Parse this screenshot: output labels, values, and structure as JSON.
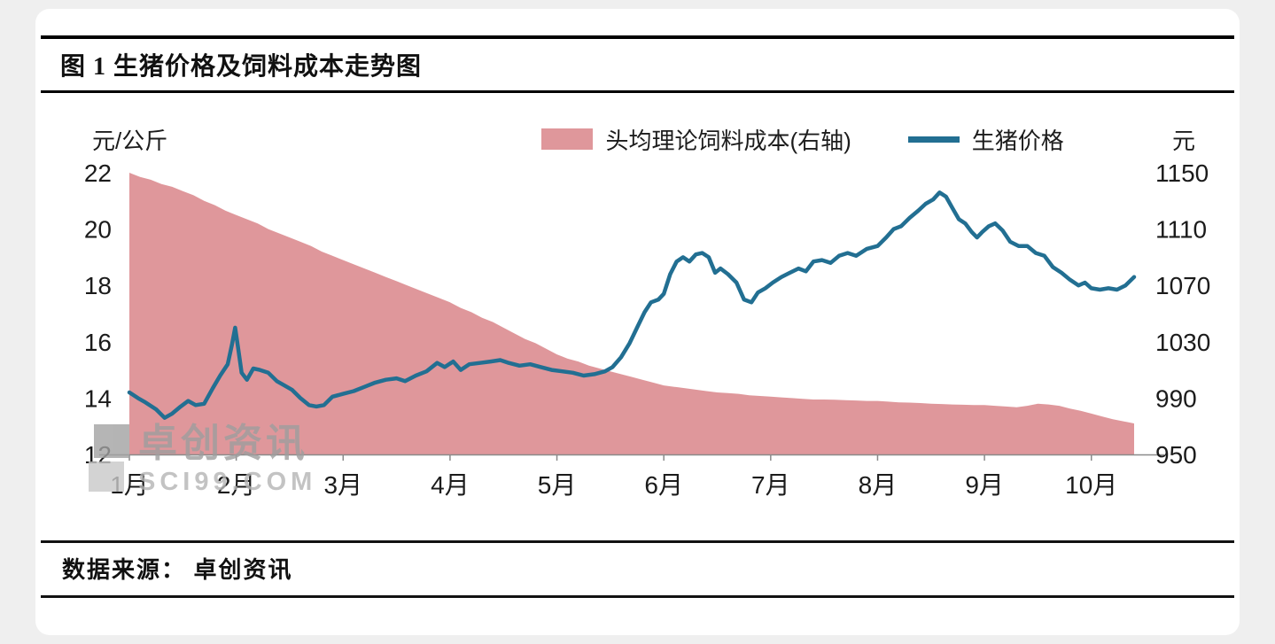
{
  "figure": {
    "title": "图 1 生猪价格及饲料成本走势图",
    "source": "数据来源： 卓创资讯"
  },
  "watermark": {
    "line1": "卓创资讯",
    "line2": "SCI99.COM"
  },
  "chart_data": {
    "type": "line",
    "title": "图 1 生猪价格及饲料成本走势图",
    "grid": false,
    "legend_position": "top",
    "x_range": [
      1.0,
      10.4
    ],
    "x_ticks": [
      "1月",
      "2月",
      "3月",
      "4月",
      "5月",
      "6月",
      "7月",
      "8月",
      "9月",
      "10月"
    ],
    "left_axis": {
      "label": "元/公斤",
      "min": 12,
      "max": 22,
      "ticks": [
        22,
        20,
        18,
        16,
        14,
        12
      ]
    },
    "right_axis": {
      "label": "元",
      "min": 950,
      "max": 1150,
      "ticks": [
        1150,
        1110,
        1070,
        1030,
        990,
        950
      ]
    },
    "legend": [
      {
        "label": "头均理论饲料成本(右轴)",
        "color": "#df979b",
        "type": "area"
      },
      {
        "label": "生猪价格",
        "color": "#226f92",
        "type": "line"
      }
    ],
    "series": [
      {
        "name": "头均理论饲料成本(右轴)",
        "axis": "right",
        "type": "area",
        "color": "#df979b",
        "x": {
          "start": 1.0,
          "step": 0.1
        },
        "values": [
          1150,
          1147,
          1145,
          1142,
          1140,
          1137,
          1134,
          1130,
          1127,
          1123,
          1120,
          1117,
          1114,
          1110,
          1107,
          1104,
          1101,
          1098,
          1094,
          1091,
          1088,
          1085,
          1082,
          1079,
          1076,
          1073,
          1070,
          1067,
          1064,
          1061,
          1058,
          1054,
          1051,
          1047,
          1044,
          1040,
          1036,
          1032,
          1029,
          1025,
          1021,
          1018,
          1016,
          1013,
          1011,
          1009,
          1007,
          1005,
          1003,
          1001,
          999,
          998,
          997,
          996,
          995,
          994,
          993.5,
          993,
          992,
          991.5,
          991,
          990.5,
          990,
          989.5,
          989,
          989,
          988.8,
          988.5,
          988.3,
          988,
          988,
          987.5,
          987,
          986.8,
          986.5,
          986,
          985.8,
          985.5,
          985.3,
          985,
          985,
          984.5,
          984,
          983.5,
          984.5,
          986,
          985.5,
          984.5,
          982.5,
          981,
          979,
          977,
          975,
          973.5,
          972
        ]
      },
      {
        "name": "生猪价格",
        "axis": "left",
        "type": "line",
        "color": "#226f92",
        "x": [
          1.0,
          1.08,
          1.15,
          1.25,
          1.33,
          1.4,
          1.48,
          1.55,
          1.62,
          1.7,
          1.78,
          1.85,
          1.92,
          1.96,
          1.99,
          2.02,
          2.05,
          2.1,
          2.16,
          2.22,
          2.3,
          2.38,
          2.45,
          2.52,
          2.6,
          2.68,
          2.75,
          2.82,
          2.9,
          3.0,
          3.1,
          3.2,
          3.3,
          3.4,
          3.5,
          3.58,
          3.68,
          3.78,
          3.88,
          3.95,
          4.03,
          4.1,
          4.18,
          4.28,
          4.38,
          4.47,
          4.55,
          4.65,
          4.75,
          4.85,
          4.95,
          5.05,
          5.15,
          5.25,
          5.35,
          5.45,
          5.52,
          5.6,
          5.68,
          5.75,
          5.82,
          5.88,
          5.95,
          6.0,
          6.06,
          6.12,
          6.18,
          6.24,
          6.3,
          6.36,
          6.42,
          6.48,
          6.53,
          6.6,
          6.68,
          6.75,
          6.82,
          6.88,
          6.95,
          7.02,
          7.1,
          7.18,
          7.26,
          7.33,
          7.4,
          7.48,
          7.56,
          7.64,
          7.72,
          7.8,
          7.9,
          8.0,
          8.08,
          8.15,
          8.22,
          8.3,
          8.38,
          8.45,
          8.52,
          8.58,
          8.64,
          8.7,
          8.76,
          8.82,
          8.88,
          8.93,
          8.98,
          9.04,
          9.1,
          9.17,
          9.24,
          9.32,
          9.4,
          9.48,
          9.56,
          9.64,
          9.72,
          9.8,
          9.88,
          9.94,
          10.0,
          10.08,
          10.16,
          10.24,
          10.32,
          10.4
        ],
        "values": [
          14.2,
          14.0,
          13.85,
          13.6,
          13.3,
          13.45,
          13.7,
          13.9,
          13.75,
          13.8,
          14.35,
          14.8,
          15.2,
          15.9,
          16.5,
          15.7,
          14.9,
          14.65,
          15.05,
          15.0,
          14.9,
          14.6,
          14.45,
          14.3,
          14.0,
          13.75,
          13.7,
          13.75,
          14.05,
          14.15,
          14.25,
          14.4,
          14.55,
          14.65,
          14.7,
          14.6,
          14.8,
          14.95,
          15.25,
          15.1,
          15.3,
          15.0,
          15.2,
          15.25,
          15.3,
          15.35,
          15.25,
          15.15,
          15.2,
          15.1,
          15.0,
          14.95,
          14.9,
          14.8,
          14.85,
          14.95,
          15.1,
          15.45,
          15.95,
          16.5,
          17.05,
          17.4,
          17.5,
          17.7,
          18.4,
          18.85,
          19.0,
          18.85,
          19.1,
          19.15,
          19.0,
          18.45,
          18.6,
          18.4,
          18.1,
          17.5,
          17.4,
          17.75,
          17.9,
          18.1,
          18.3,
          18.45,
          18.6,
          18.5,
          18.85,
          18.9,
          18.8,
          19.05,
          19.15,
          19.05,
          19.3,
          19.4,
          19.7,
          20.0,
          20.1,
          20.4,
          20.65,
          20.9,
          21.05,
          21.3,
          21.15,
          20.75,
          20.35,
          20.2,
          19.9,
          19.7,
          19.9,
          20.1,
          20.2,
          19.95,
          19.55,
          19.4,
          19.4,
          19.15,
          19.05,
          18.65,
          18.45,
          18.2,
          18.0,
          18.1,
          17.9,
          17.85,
          17.9,
          17.85,
          18.0,
          18.3
        ]
      }
    ]
  }
}
